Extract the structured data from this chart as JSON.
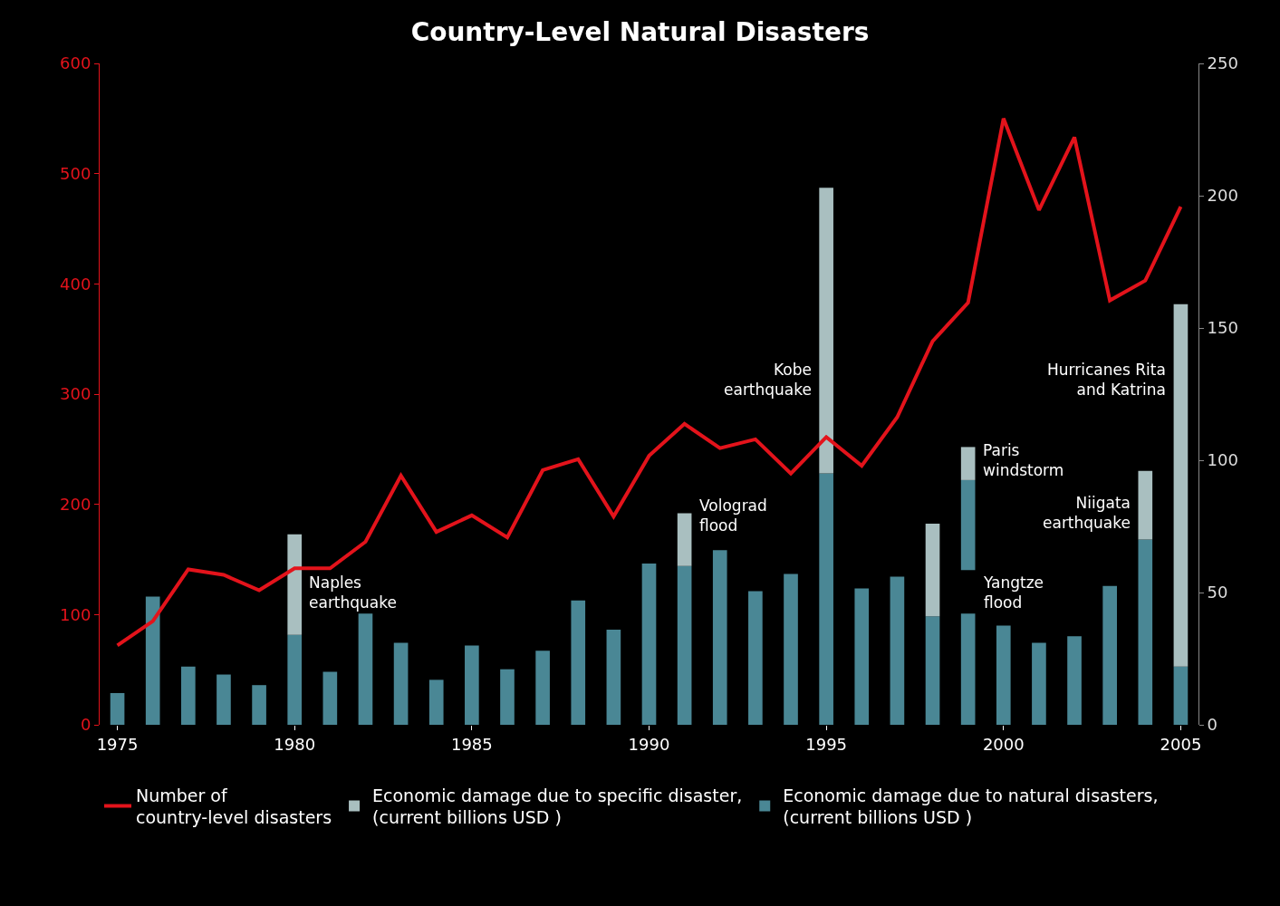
{
  "chart_data": {
    "type": "bar",
    "title": "Country-Level Natural Disasters",
    "x": [
      1975,
      1976,
      1977,
      1978,
      1979,
      1980,
      1981,
      1982,
      1983,
      1984,
      1985,
      1986,
      1987,
      1988,
      1989,
      1990,
      1991,
      1992,
      1993,
      1994,
      1995,
      1996,
      1997,
      1998,
      1999,
      2000,
      2001,
      2002,
      2003,
      2004,
      2005
    ],
    "series": [
      {
        "name": "Economic damage due to natural disasters,\n(current billions USD )",
        "color": "#4a8795",
        "axis": "y2",
        "values": [
          12,
          48.5,
          22,
          19,
          15,
          34,
          20,
          42,
          31,
          17,
          30,
          21,
          28,
          47,
          36,
          61,
          60,
          66,
          50.5,
          57,
          95,
          51.5,
          56,
          41,
          42,
          37.5,
          31,
          33.5,
          52.5,
          70,
          22
        ]
      },
      {
        "color": "#4a8795",
        "axis": "y2",
        "values": [
          null,
          null,
          null,
          null,
          null,
          null,
          null,
          null,
          null,
          null,
          null,
          null,
          null,
          null,
          null,
          null,
          null,
          null,
          null,
          null,
          null,
          null,
          null,
          null,
          34,
          null,
          null,
          null,
          null,
          null,
          null
        ],
        "base": [
          null,
          null,
          null,
          null,
          null,
          null,
          null,
          null,
          null,
          null,
          null,
          null,
          null,
          null,
          null,
          null,
          null,
          null,
          null,
          null,
          null,
          null,
          null,
          null,
          58.5,
          null,
          null,
          null,
          null,
          null,
          null
        ]
      },
      {
        "name": "Economic damage due to specific disaster,\n(current billions USD )",
        "color": "#a9bfc0",
        "axis": "y2",
        "values": [
          null,
          null,
          null,
          null,
          null,
          38,
          null,
          null,
          null,
          null,
          null,
          null,
          null,
          null,
          null,
          null,
          20,
          null,
          null,
          null,
          108,
          null,
          null,
          35,
          12.5,
          null,
          null,
          null,
          null,
          26,
          137
        ],
        "base": [
          null,
          null,
          null,
          null,
          null,
          34,
          null,
          null,
          null,
          null,
          null,
          null,
          null,
          null,
          null,
          null,
          60,
          null,
          null,
          null,
          95,
          null,
          null,
          41,
          92.5,
          null,
          null,
          null,
          null,
          70,
          22
        ]
      },
      {
        "name": "Number of\ncountry-level disasters",
        "color": "#e3131b",
        "type": "line",
        "values": [
          72,
          94,
          141,
          136,
          122,
          142,
          142,
          166,
          226,
          175,
          190,
          170,
          231,
          241,
          189,
          244,
          273,
          251,
          259,
          228,
          261,
          235,
          279,
          348,
          383,
          550,
          467,
          533,
          385,
          403,
          470
        ]
      }
    ],
    "xlim": [
      1974.5,
      2005.5
    ],
    "xticks": [
      1975,
      1980,
      1985,
      1990,
      1995,
      2000,
      2005
    ],
    "ylim": [
      0,
      600
    ],
    "yticks": [
      0,
      100,
      200,
      300,
      400,
      500,
      600
    ],
    "y2lim": [
      0,
      250
    ],
    "y2ticks": [
      0,
      50,
      100,
      150,
      200,
      250
    ],
    "annotations": [
      "Naples\nearthquake",
      "Kobe\nearthquake",
      "Volograd\nflood",
      "Paris\nwindstorm",
      "Yangtze\nflood",
      "Niigata\nearthquake",
      "Hurricanes Rita\nand Katrina"
    ],
    "grid": false,
    "legend": "bottom"
  }
}
